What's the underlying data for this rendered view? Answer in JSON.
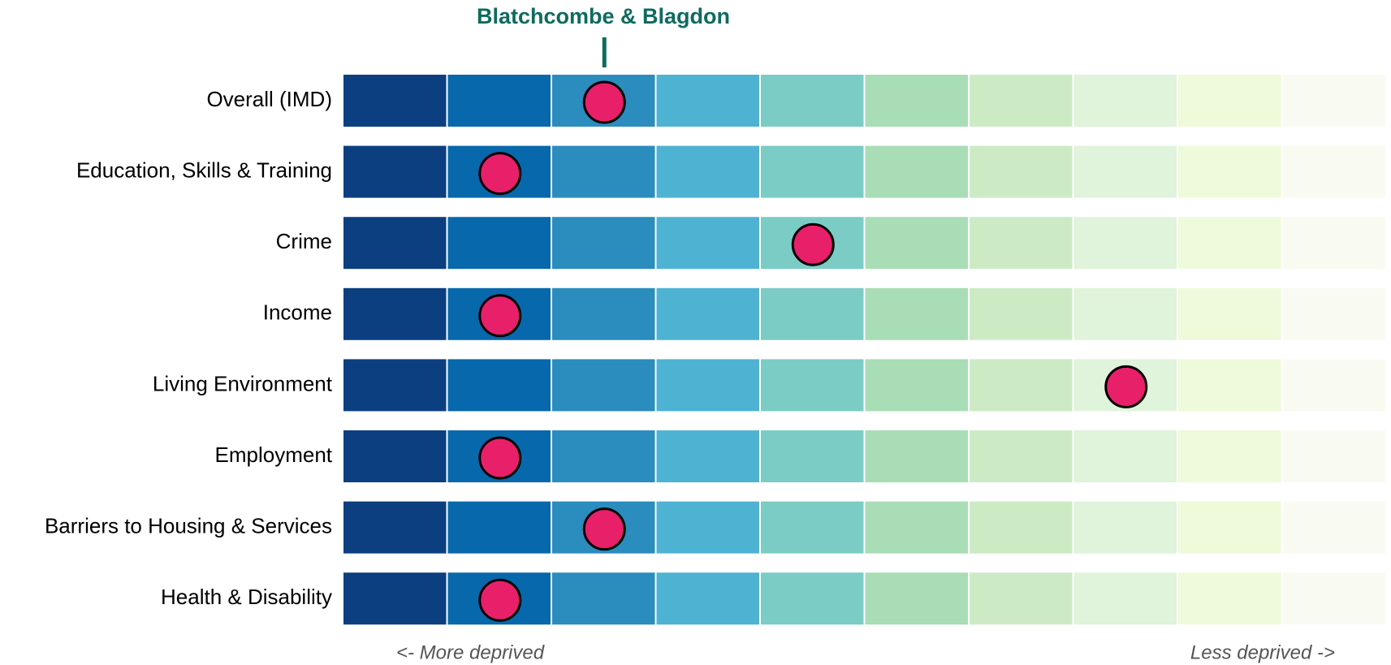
{
  "chart_data": {
    "type": "decile-strip",
    "title": "Blatchcombe & Blagdon",
    "categories": [
      "Overall (IMD)",
      "Education, Skills & Training",
      "Crime",
      "Income",
      "Living Environment",
      "Employment",
      "Barriers to Housing & Services",
      "Health & Disability"
    ],
    "values": [
      3,
      2,
      5,
      2,
      8,
      2,
      3,
      2
    ],
    "xlim": [
      0.5,
      10.5
    ],
    "band_colors": [
      "#0b3f80",
      "#0868ac",
      "#2b8cbe",
      "#4eb3d3",
      "#7bccc4",
      "#a8ddb5",
      "#ccebc5",
      "#e0f3db",
      "#eefad9",
      "#f9fbf2"
    ],
    "marker_color": "#e8206a",
    "left_annotation": "<- More deprived",
    "right_annotation": "Less deprived ->"
  }
}
